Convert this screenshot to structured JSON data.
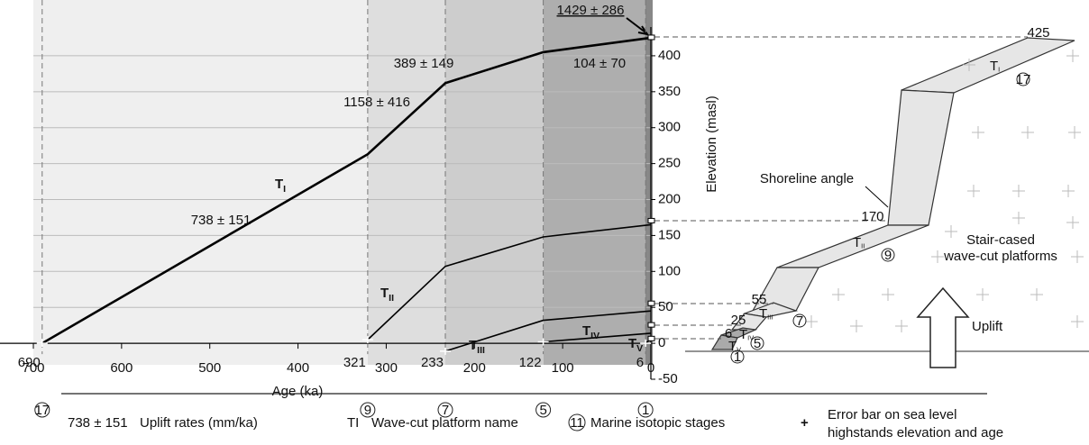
{
  "chart_data": {
    "type": "line",
    "x_label": "Age (ka)",
    "y_label": "Elevation (masl)",
    "xlim": [
      700,
      0
    ],
    "xticks": [
      700,
      600,
      500,
      400,
      300,
      200,
      100,
      0
    ],
    "ylim": [
      -50,
      440
    ],
    "yticks": [
      -50,
      0,
      50,
      100,
      150,
      200,
      250,
      300,
      350,
      400
    ],
    "grid": true,
    "color": "#000000",
    "series": [
      {
        "name": "T",
        "subscript": "I",
        "x": [
          690,
          321,
          233,
          122,
          0
        ],
        "values": [
          0,
          263,
          362,
          405,
          425
        ]
      },
      {
        "name": "T",
        "subscript": "II",
        "x": [
          321,
          233,
          122,
          0
        ],
        "values": [
          5,
          107,
          148,
          165
        ]
      },
      {
        "name": "T",
        "subscript": "III",
        "x": [
          233,
          122,
          0
        ],
        "values": [
          -11,
          32,
          45
        ]
      },
      {
        "name": "T",
        "subscript": "IV",
        "x": [
          122,
          0
        ],
        "values": [
          2,
          14
        ]
      },
      {
        "name": "T",
        "subscript": "V",
        "x": [
          6,
          0
        ],
        "values": [
          0,
          6
        ]
      }
    ],
    "stage_ages": [
      690,
      321,
      233,
      122,
      6
    ],
    "stages": [
      "17",
      "9",
      "7",
      "5",
      "1"
    ],
    "rates": [
      "1429 ± 286",
      "389 ± 149",
      "104 ± 70",
      "1158 ± 416",
      "738 ± 151"
    ]
  },
  "diagram": {
    "elevations": [
      425,
      170,
      55,
      25,
      6
    ],
    "platforms": [
      {
        "name": "T",
        "subscript": "I",
        "stage": "17"
      },
      {
        "name": "T",
        "subscript": "II",
        "stage": "9"
      },
      {
        "name": "T",
        "subscript": "III",
        "stage": "7"
      },
      {
        "name": "T",
        "subscript": "IV",
        "stage": "5"
      },
      {
        "name": "T",
        "subscript": "V",
        "stage": "1"
      }
    ],
    "shoreline_label": "Shoreline angle",
    "platforms_label": [
      "Stair-cased",
      "wave-cut platforms"
    ],
    "uplift_label": "Uplift"
  },
  "legend": {
    "rate_example": "738 ± 151",
    "rate_text": "Uplift rates (mm/ka)",
    "platform_example": "TI",
    "platform_text": "Wave-cut platform name",
    "stage_example": "11",
    "stage_text": "Marine isotopic stages",
    "error_symbol": "+",
    "error_text": [
      "Error bar on sea level",
      "highstands elevation and age"
    ]
  }
}
